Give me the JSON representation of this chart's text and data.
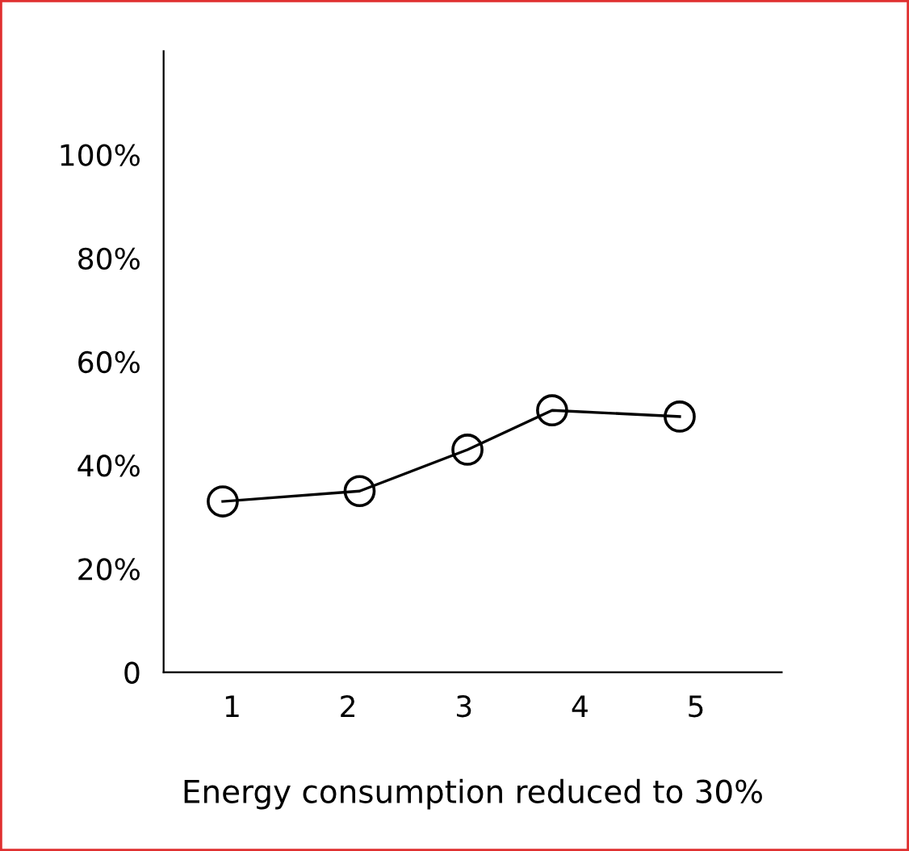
{
  "chart_data": {
    "type": "line",
    "xlabel": "Energy consumption reduced to 30%",
    "series": [
      {
        "color": "#000000",
        "x": [
          0.92,
          2.1,
          3.03,
          3.76,
          4.86
        ],
        "values": [
          33,
          35,
          43,
          50.6,
          49.4
        ]
      }
    ],
    "xlim": [
      0.41,
      5.74
    ],
    "xticks": [
      1,
      2,
      3,
      4,
      5
    ],
    "ylim": [
      0,
      120
    ],
    "yticks": [
      {
        "value": 0,
        "label": "0"
      },
      {
        "value": 20,
        "label": "20%"
      },
      {
        "value": 40,
        "label": "40%"
      },
      {
        "value": 60,
        "label": "60%"
      },
      {
        "value": 80,
        "label": "80%"
      },
      {
        "value": 100,
        "label": "100%"
      }
    ],
    "marker": "circle",
    "line_style": "solid",
    "grid": false
  }
}
